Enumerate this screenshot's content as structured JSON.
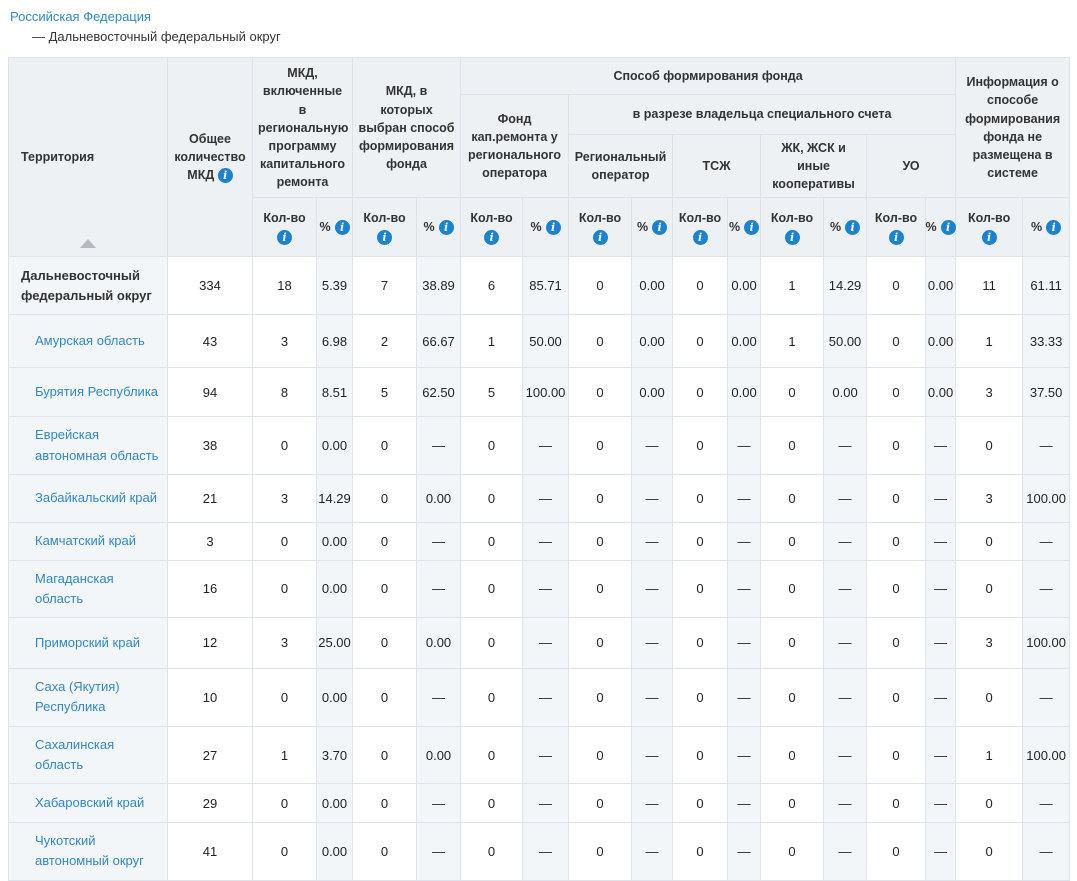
{
  "breadcrumb": {
    "root": "Российская Федерация",
    "current": "— Дальневосточный федеральный округ"
  },
  "colors": {
    "link": "#2f87c8",
    "info_icon": "#1a82d2",
    "header_bg": "#eef1f4",
    "tint_bg": "#f3f6f9",
    "border": "#dde3e8"
  },
  "table": {
    "headers": {
      "territory": "Территория",
      "total_mkd": "Общее количество МКД",
      "program": "МКД, включенные в региональную программу капитального ремонта",
      "method_chosen": "МКД, в которых выбран способ формирования фонда",
      "fund_method": "Способ формирования фонда",
      "regional_fund": "Фонд кап.ремонта у регионального оператора",
      "special_account": "в разрезе владельца специального счета",
      "regional_operator": "Региональный оператор",
      "tsj": "ТСЖ",
      "coops": "ЖК, ЖСК и иные кооперативы",
      "uo": "УО",
      "no_info": "Информация о способе формирования фонда не размещена в системе",
      "qty": "Кол-во",
      "pct": "%"
    },
    "rows": [
      {
        "territory": "Дальневосточный федеральный округ",
        "is_link": false,
        "bold": true,
        "values": [
          "334",
          "18",
          "5.39",
          "7",
          "38.89",
          "6",
          "85.71",
          "0",
          "0.00",
          "0",
          "0.00",
          "1",
          "14.29",
          "0",
          "0.00",
          "11",
          "61.11"
        ]
      },
      {
        "territory": "Амурская область",
        "is_link": true,
        "bold": false,
        "values": [
          "43",
          "3",
          "6.98",
          "2",
          "66.67",
          "1",
          "50.00",
          "0",
          "0.00",
          "0",
          "0.00",
          "1",
          "50.00",
          "0",
          "0.00",
          "1",
          "33.33"
        ]
      },
      {
        "territory": "Бурятия Республика",
        "is_link": true,
        "bold": false,
        "values": [
          "94",
          "8",
          "8.51",
          "5",
          "62.50",
          "5",
          "100.00",
          "0",
          "0.00",
          "0",
          "0.00",
          "0",
          "0.00",
          "0",
          "0.00",
          "3",
          "37.50"
        ]
      },
      {
        "territory": "Еврейская автономная область",
        "is_link": true,
        "bold": false,
        "values": [
          "38",
          "0",
          "0.00",
          "0",
          "—",
          "0",
          "—",
          "0",
          "—",
          "0",
          "—",
          "0",
          "—",
          "0",
          "—",
          "0",
          "—"
        ]
      },
      {
        "territory": "Забайкальский край",
        "is_link": true,
        "bold": false,
        "values": [
          "21",
          "3",
          "14.29",
          "0",
          "0.00",
          "0",
          "—",
          "0",
          "—",
          "0",
          "—",
          "0",
          "—",
          "0",
          "—",
          "3",
          "100.00"
        ]
      },
      {
        "territory": "Камчатский край",
        "is_link": true,
        "bold": false,
        "values": [
          "3",
          "0",
          "0.00",
          "0",
          "—",
          "0",
          "—",
          "0",
          "—",
          "0",
          "—",
          "0",
          "—",
          "0",
          "—",
          "0",
          "—"
        ]
      },
      {
        "territory": "Магаданская область",
        "is_link": true,
        "bold": false,
        "values": [
          "16",
          "0",
          "0.00",
          "0",
          "—",
          "0",
          "—",
          "0",
          "—",
          "0",
          "—",
          "0",
          "—",
          "0",
          "—",
          "0",
          "—"
        ]
      },
      {
        "territory": "Приморский край",
        "is_link": true,
        "bold": false,
        "values": [
          "12",
          "3",
          "25.00",
          "0",
          "0.00",
          "0",
          "—",
          "0",
          "—",
          "0",
          "—",
          "0",
          "—",
          "0",
          "—",
          "3",
          "100.00"
        ]
      },
      {
        "territory": "Саха (Якутия) Республика",
        "is_link": true,
        "bold": false,
        "values": [
          "10",
          "0",
          "0.00",
          "0",
          "—",
          "0",
          "—",
          "0",
          "—",
          "0",
          "—",
          "0",
          "—",
          "0",
          "—",
          "0",
          "—"
        ]
      },
      {
        "territory": "Сахалинская область",
        "is_link": true,
        "bold": false,
        "values": [
          "27",
          "1",
          "3.70",
          "0",
          "0.00",
          "0",
          "—",
          "0",
          "—",
          "0",
          "—",
          "0",
          "—",
          "0",
          "—",
          "1",
          "100.00"
        ]
      },
      {
        "territory": "Хабаровский край",
        "is_link": true,
        "bold": false,
        "values": [
          "29",
          "0",
          "0.00",
          "0",
          "—",
          "0",
          "—",
          "0",
          "—",
          "0",
          "—",
          "0",
          "—",
          "0",
          "—",
          "0",
          "—"
        ]
      },
      {
        "territory": "Чукотский автономный округ",
        "is_link": true,
        "bold": false,
        "values": [
          "41",
          "0",
          "0.00",
          "0",
          "—",
          "0",
          "—",
          "0",
          "—",
          "0",
          "—",
          "0",
          "—",
          "0",
          "—",
          "0",
          "—"
        ]
      }
    ]
  }
}
